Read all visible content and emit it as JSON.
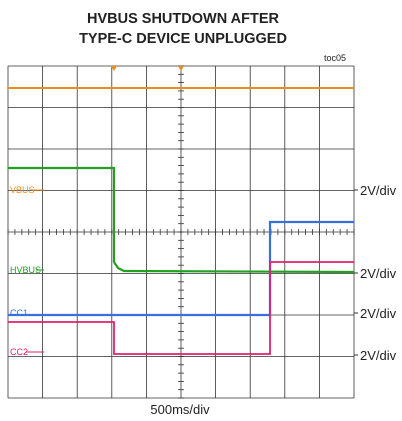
{
  "title": [
    "HVBUS SHUTDOWN AFTER",
    "TYPE-C DEVICE UNPLUGGED"
  ],
  "figure_id": "toc05",
  "channels": [
    {
      "name": "VBUS",
      "scale": "2V/div"
    },
    {
      "name": "HVBUS",
      "scale": "2V/div"
    },
    {
      "name": "CC1",
      "scale": "2V/div"
    },
    {
      "name": "CC2",
      "scale": "2V/div"
    }
  ],
  "time_scale": "500ms/div"
}
